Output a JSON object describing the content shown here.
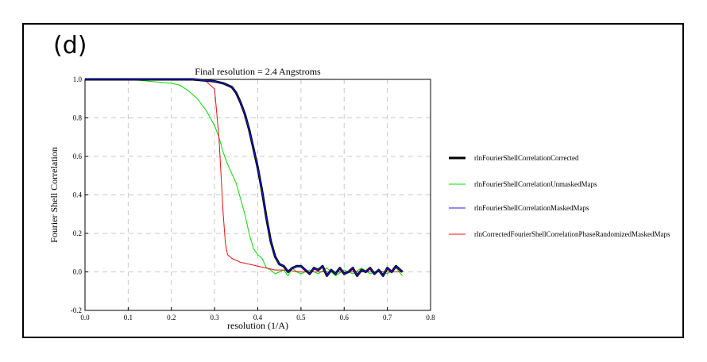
{
  "panel_label": "(d)",
  "chart_data": {
    "type": "line",
    "title": "Final resolution =   2.4 Angstroms",
    "xlabel": "resolution (1/A)",
    "ylabel": "Fourier Shell Correlation",
    "xlim": [
      0.0,
      0.8
    ],
    "ylim": [
      -0.2,
      1.0
    ],
    "xticks": [
      "0.0",
      "0.1",
      "0.2",
      "0.3",
      "0.4",
      "0.5",
      "0.6",
      "0.7",
      "0.8"
    ],
    "yticks": [
      "-0.2",
      "0.0",
      "0.2",
      "0.4",
      "0.6",
      "0.8",
      "1.0"
    ],
    "xtick_values": [
      0.0,
      0.1,
      0.2,
      0.3,
      0.4,
      0.5,
      0.6,
      0.7,
      0.8
    ],
    "ytick_values": [
      -0.2,
      0.0,
      0.2,
      0.4,
      0.6,
      0.8,
      1.0
    ],
    "grid": true,
    "legend_position": "right",
    "series": [
      {
        "name": "rlnFourierShellCorrelationCorrected",
        "color": "#000000",
        "width": 3,
        "points": [
          [
            0.0,
            1.0
          ],
          [
            0.1,
            1.0
          ],
          [
            0.2,
            1.0
          ],
          [
            0.25,
            1.0
          ],
          [
            0.3,
            0.99
          ],
          [
            0.32,
            0.98
          ],
          [
            0.34,
            0.96
          ],
          [
            0.35,
            0.93
          ],
          [
            0.36,
            0.88
          ],
          [
            0.37,
            0.82
          ],
          [
            0.38,
            0.74
          ],
          [
            0.39,
            0.64
          ],
          [
            0.4,
            0.54
          ],
          [
            0.41,
            0.42
          ],
          [
            0.42,
            0.28
          ],
          [
            0.43,
            0.16
          ],
          [
            0.44,
            0.08
          ],
          [
            0.45,
            0.04
          ],
          [
            0.46,
            0.03
          ],
          [
            0.47,
            0.0
          ],
          [
            0.48,
            0.02
          ],
          [
            0.49,
            0.03
          ],
          [
            0.5,
            0.03
          ],
          [
            0.51,
            0.01
          ],
          [
            0.52,
            -0.01
          ],
          [
            0.53,
            0.02
          ],
          [
            0.54,
            0.01
          ],
          [
            0.55,
            0.03
          ],
          [
            0.56,
            -0.02
          ],
          [
            0.57,
            0.01
          ],
          [
            0.58,
            -0.01
          ],
          [
            0.59,
            0.02
          ],
          [
            0.6,
            -0.01
          ],
          [
            0.61,
            0.0
          ],
          [
            0.62,
            0.02
          ],
          [
            0.63,
            -0.02
          ],
          [
            0.64,
            0.01
          ],
          [
            0.65,
            0.0
          ],
          [
            0.66,
            0.02
          ],
          [
            0.67,
            -0.01
          ],
          [
            0.68,
            0.01
          ],
          [
            0.69,
            -0.02
          ],
          [
            0.7,
            0.02
          ],
          [
            0.71,
            0.0
          ],
          [
            0.72,
            0.03
          ],
          [
            0.73,
            0.01
          ],
          [
            0.735,
            0.0
          ]
        ]
      },
      {
        "name": "rlnFourierShellCorrelationUnmaskedMaps",
        "color": "#00dd00",
        "width": 1,
        "points": [
          [
            0.0,
            1.0
          ],
          [
            0.1,
            1.0
          ],
          [
            0.15,
            0.99
          ],
          [
            0.2,
            0.98
          ],
          [
            0.22,
            0.97
          ],
          [
            0.24,
            0.94
          ],
          [
            0.26,
            0.9
          ],
          [
            0.27,
            0.87
          ],
          [
            0.28,
            0.84
          ],
          [
            0.29,
            0.8
          ],
          [
            0.3,
            0.76
          ],
          [
            0.31,
            0.7
          ],
          [
            0.32,
            0.62
          ],
          [
            0.33,
            0.56
          ],
          [
            0.34,
            0.51
          ],
          [
            0.35,
            0.46
          ],
          [
            0.36,
            0.38
          ],
          [
            0.37,
            0.3
          ],
          [
            0.38,
            0.2
          ],
          [
            0.39,
            0.12
          ],
          [
            0.4,
            0.09
          ],
          [
            0.41,
            0.07
          ],
          [
            0.42,
            0.02
          ],
          [
            0.43,
            0.01
          ],
          [
            0.44,
            -0.01
          ],
          [
            0.45,
            0.0
          ],
          [
            0.46,
            0.01
          ],
          [
            0.47,
            -0.02
          ],
          [
            0.48,
            0.02
          ],
          [
            0.49,
            0.0
          ],
          [
            0.5,
            -0.01
          ],
          [
            0.52,
            0.01
          ],
          [
            0.54,
            -0.01
          ],
          [
            0.56,
            0.02
          ],
          [
            0.58,
            -0.02
          ],
          [
            0.6,
            0.01
          ],
          [
            0.62,
            -0.01
          ],
          [
            0.64,
            0.02
          ],
          [
            0.66,
            -0.01
          ],
          [
            0.68,
            0.01
          ],
          [
            0.7,
            -0.01
          ],
          [
            0.72,
            0.02
          ],
          [
            0.735,
            -0.02
          ]
        ]
      },
      {
        "name": "rlnFourierShellCorrelationMaskedMaps",
        "color": "#1a1aff",
        "width": 1,
        "points": [
          [
            0.0,
            1.0
          ],
          [
            0.1,
            1.0
          ],
          [
            0.2,
            1.0
          ],
          [
            0.25,
            1.0
          ],
          [
            0.3,
            0.99
          ],
          [
            0.32,
            0.98
          ],
          [
            0.34,
            0.96
          ],
          [
            0.35,
            0.93
          ],
          [
            0.36,
            0.88
          ],
          [
            0.37,
            0.82
          ],
          [
            0.38,
            0.74
          ],
          [
            0.39,
            0.64
          ],
          [
            0.4,
            0.54
          ],
          [
            0.41,
            0.42
          ],
          [
            0.42,
            0.28
          ],
          [
            0.43,
            0.16
          ],
          [
            0.44,
            0.08
          ],
          [
            0.45,
            0.04
          ],
          [
            0.46,
            0.03
          ],
          [
            0.47,
            0.0
          ],
          [
            0.48,
            0.02
          ],
          [
            0.49,
            0.03
          ],
          [
            0.5,
            0.03
          ],
          [
            0.51,
            0.01
          ],
          [
            0.52,
            -0.01
          ],
          [
            0.53,
            0.02
          ],
          [
            0.54,
            0.01
          ],
          [
            0.55,
            0.03
          ],
          [
            0.56,
            -0.02
          ],
          [
            0.57,
            0.01
          ],
          [
            0.58,
            -0.01
          ],
          [
            0.59,
            0.02
          ],
          [
            0.6,
            -0.01
          ],
          [
            0.61,
            0.0
          ],
          [
            0.62,
            0.02
          ],
          [
            0.63,
            -0.02
          ],
          [
            0.64,
            0.01
          ],
          [
            0.65,
            0.0
          ],
          [
            0.66,
            0.02
          ],
          [
            0.67,
            -0.01
          ],
          [
            0.68,
            0.01
          ],
          [
            0.69,
            -0.02
          ],
          [
            0.7,
            0.02
          ],
          [
            0.71,
            0.0
          ],
          [
            0.72,
            0.03
          ],
          [
            0.73,
            0.01
          ],
          [
            0.735,
            0.0
          ]
        ]
      },
      {
        "name": "rlnCorrectedFourierShellCorrelationPhaseRandomizedMaskedMaps",
        "color": "#ee1111",
        "width": 1,
        "points": [
          [
            0.0,
            1.0
          ],
          [
            0.1,
            1.0
          ],
          [
            0.2,
            1.0
          ],
          [
            0.25,
            1.0
          ],
          [
            0.28,
            0.99
          ],
          [
            0.3,
            0.95
          ],
          [
            0.31,
            0.7
          ],
          [
            0.315,
            0.5
          ],
          [
            0.32,
            0.3
          ],
          [
            0.325,
            0.15
          ],
          [
            0.33,
            0.09
          ],
          [
            0.34,
            0.07
          ],
          [
            0.36,
            0.05
          ],
          [
            0.38,
            0.04
          ],
          [
            0.4,
            0.03
          ],
          [
            0.42,
            0.02
          ],
          [
            0.44,
            0.01
          ],
          [
            0.46,
            0.01
          ],
          [
            0.5,
            0.0
          ],
          [
            0.55,
            0.0
          ],
          [
            0.6,
            0.0
          ],
          [
            0.65,
            0.0
          ],
          [
            0.7,
            0.0
          ],
          [
            0.735,
            0.0
          ]
        ]
      }
    ]
  }
}
